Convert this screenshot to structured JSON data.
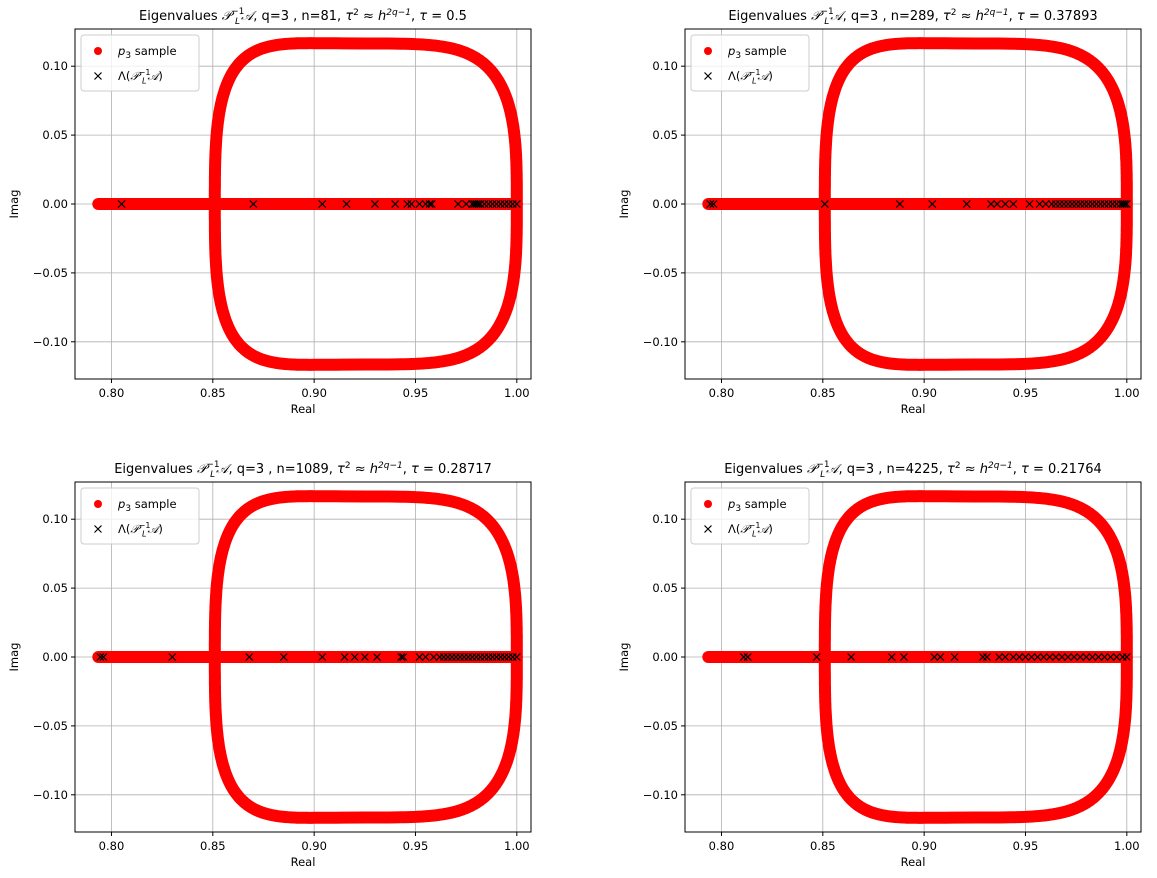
{
  "chart_data": [
    {
      "type": "scatter",
      "title": "Eigenvalues P_L^{-1}A, q=3 , n=81, τ² ≈ h^{2q−1}, τ = 0.5",
      "title_parts": {
        "prefix": "Eigenvalues ",
        "mid": ", q=3 , n=81, ",
        "tau_value": "0.5"
      },
      "xlabel": "Real",
      "ylabel": "Imag",
      "xlim": [
        0.782,
        1.007
      ],
      "ylim": [
        -0.127,
        0.127
      ],
      "xticks": [
        0.8,
        0.85,
        0.9,
        0.95,
        1.0
      ],
      "xtick_labels": [
        "0.80",
        "0.85",
        "0.90",
        "0.95",
        "1.00"
      ],
      "yticks": [
        -0.1,
        -0.05,
        0.0,
        0.05,
        0.1
      ],
      "ytick_labels": [
        "−0.10",
        "−0.05",
        "0.00",
        "0.05",
        "0.10"
      ],
      "grid": true,
      "legend_position": "upper left",
      "series": [
        {
          "name": "p_3 sample",
          "marker": "circle",
          "color": "#ff0000",
          "curve": {
            "real_axis_range": [
              0.7935,
              1.0
            ],
            "loop_left_real": 0.851,
            "loop_right_real": 1.0,
            "loop_peak_real": 0.912,
            "loop_peak_imag": 0.1165
          }
        },
        {
          "name": "Λ(P_L^{-1}A)",
          "marker": "x",
          "color": "#000000",
          "imag": 0.0,
          "real": [
            0.805,
            0.87,
            0.904,
            0.916,
            0.93,
            0.94,
            0.946,
            0.948,
            0.952,
            0.955,
            0.957,
            0.958,
            0.971,
            0.975,
            0.978,
            0.979,
            0.98,
            0.981,
            0.982,
            0.984,
            0.986,
            0.988,
            0.99,
            0.992,
            0.994,
            0.996,
            0.998,
            1.0
          ]
        }
      ]
    },
    {
      "type": "scatter",
      "title": "Eigenvalues P_L^{-1}A, q=3 , n=289, τ² ≈ h^{2q−1}, τ = 0.37893",
      "title_parts": {
        "prefix": "Eigenvalues ",
        "mid": ", q=3 , n=289, ",
        "tau_value": "0.37893"
      },
      "xlabel": "Real",
      "ylabel": "Imag",
      "xlim": [
        0.782,
        1.007
      ],
      "ylim": [
        -0.127,
        0.127
      ],
      "xticks": [
        0.8,
        0.85,
        0.9,
        0.95,
        1.0
      ],
      "xtick_labels": [
        "0.80",
        "0.85",
        "0.90",
        "0.95",
        "1.00"
      ],
      "yticks": [
        -0.1,
        -0.05,
        0.0,
        0.05,
        0.1
      ],
      "ytick_labels": [
        "−0.10",
        "−0.05",
        "0.00",
        "0.05",
        "0.10"
      ],
      "grid": true,
      "legend_position": "upper left",
      "series": [
        {
          "name": "p_3 sample",
          "marker": "circle",
          "color": "#ff0000",
          "curve": {
            "real_axis_range": [
              0.7935,
              1.0
            ],
            "loop_left_real": 0.851,
            "loop_right_real": 1.0,
            "loop_peak_real": 0.912,
            "loop_peak_imag": 0.1165
          }
        },
        {
          "name": "Λ(P_L^{-1}A)",
          "marker": "x",
          "color": "#000000",
          "imag": 0.0,
          "real": [
            0.7945,
            0.796,
            0.851,
            0.888,
            0.904,
            0.921,
            0.933,
            0.936,
            0.94,
            0.944,
            0.952,
            0.957,
            0.96,
            0.963,
            0.965,
            0.967,
            0.969,
            0.971,
            0.973,
            0.975,
            0.977,
            0.979,
            0.981,
            0.983,
            0.985,
            0.987,
            0.989,
            0.991,
            0.993,
            0.995,
            0.997,
            0.998,
            0.999,
            1.0
          ]
        }
      ]
    },
    {
      "type": "scatter",
      "title": "Eigenvalues P_L^{-1}A, q=3 , n=1089, τ² ≈ h^{2q−1}, τ = 0.28717",
      "title_parts": {
        "prefix": "Eigenvalues ",
        "mid": ", q=3 , n=1089, ",
        "tau_value": "0.28717"
      },
      "xlabel": "Real",
      "ylabel": "Imag",
      "xlim": [
        0.782,
        1.007
      ],
      "ylim": [
        -0.127,
        0.127
      ],
      "xticks": [
        0.8,
        0.85,
        0.9,
        0.95,
        1.0
      ],
      "xtick_labels": [
        "0.80",
        "0.85",
        "0.90",
        "0.95",
        "1.00"
      ],
      "yticks": [
        -0.1,
        -0.05,
        0.0,
        0.05,
        0.1
      ],
      "ytick_labels": [
        "−0.10",
        "−0.05",
        "0.00",
        "0.05",
        "0.10"
      ],
      "grid": true,
      "legend_position": "upper left",
      "series": [
        {
          "name": "p_3 sample",
          "marker": "circle",
          "color": "#ff0000",
          "curve": {
            "real_axis_range": [
              0.7935,
              1.0
            ],
            "loop_left_real": 0.851,
            "loop_right_real": 1.0,
            "loop_peak_real": 0.912,
            "loop_peak_imag": 0.1165
          }
        },
        {
          "name": "Λ(P_L^{-1}A)",
          "marker": "x",
          "color": "#000000",
          "imag": 0.0,
          "real": [
            0.7945,
            0.796,
            0.83,
            0.868,
            0.885,
            0.904,
            0.915,
            0.92,
            0.925,
            0.931,
            0.943,
            0.944,
            0.952,
            0.955,
            0.959,
            0.962,
            0.964,
            0.966,
            0.968,
            0.97,
            0.972,
            0.974,
            0.976,
            0.978,
            0.98,
            0.982,
            0.984,
            0.986,
            0.988,
            0.99,
            0.992,
            0.994,
            0.996,
            0.998,
            1.0
          ]
        }
      ]
    },
    {
      "type": "scatter",
      "title": "Eigenvalues P_L^{-1}A, q=3 , n=4225, τ² ≈ h^{2q−1}, τ = 0.21764",
      "title_parts": {
        "prefix": "Eigenvalues ",
        "mid": ", q=3 , n=4225, ",
        "tau_value": "0.21764"
      },
      "xlabel": "Real",
      "ylabel": "Imag",
      "xlim": [
        0.782,
        1.007
      ],
      "ylim": [
        -0.127,
        0.127
      ],
      "xticks": [
        0.8,
        0.85,
        0.9,
        0.95,
        1.0
      ],
      "xtick_labels": [
        "0.80",
        "0.85",
        "0.90",
        "0.95",
        "1.00"
      ],
      "yticks": [
        -0.1,
        -0.05,
        0.0,
        0.05,
        0.1
      ],
      "ytick_labels": [
        "−0.10",
        "−0.05",
        "0.00",
        "0.05",
        "0.10"
      ],
      "grid": true,
      "legend_position": "upper left",
      "series": [
        {
          "name": "p_3 sample",
          "marker": "circle",
          "color": "#ff0000",
          "curve": {
            "real_axis_range": [
              0.7935,
              1.0
            ],
            "loop_left_real": 0.851,
            "loop_right_real": 1.0,
            "loop_peak_real": 0.912,
            "loop_peak_imag": 0.1165
          }
        },
        {
          "name": "Λ(P_L^{-1}A)",
          "marker": "x",
          "color": "#000000",
          "imag": 0.0,
          "real": [
            0.811,
            0.813,
            0.847,
            0.864,
            0.884,
            0.89,
            0.905,
            0.908,
            0.915,
            0.929,
            0.931,
            0.937,
            0.94,
            0.944,
            0.947,
            0.95,
            0.953,
            0.956,
            0.959,
            0.962,
            0.965,
            0.968,
            0.971,
            0.974,
            0.977,
            0.98,
            0.983,
            0.986,
            0.989,
            0.992,
            0.995,
            0.998,
            1.0
          ]
        }
      ]
    }
  ]
}
